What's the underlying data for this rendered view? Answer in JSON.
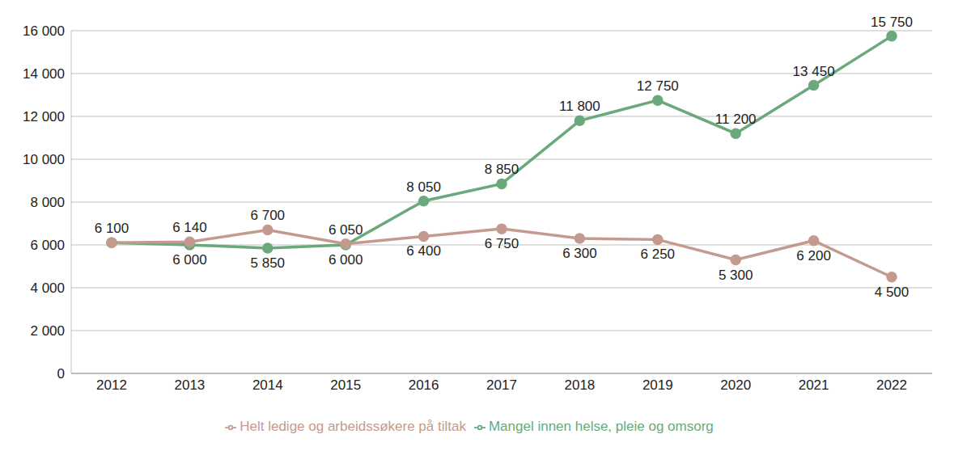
{
  "chart_data": {
    "type": "line",
    "categories": [
      "2012",
      "2013",
      "2014",
      "2015",
      "2016",
      "2017",
      "2018",
      "2019",
      "2020",
      "2021",
      "2022"
    ],
    "series": [
      {
        "name": "Mangel innen helse, pleie og omsorg",
        "color": "#6aa97c",
        "marker": "circle",
        "values": [
          6100,
          6000,
          5850,
          6000,
          8050,
          8850,
          11800,
          12750,
          11200,
          13450,
          15750
        ],
        "value_labels": [
          "6 100",
          "6 000",
          "5 850",
          "6 000",
          "8 050",
          "8 850",
          "11 800",
          "12 750",
          "11 200",
          "13 450",
          "15 750"
        ]
      },
      {
        "name": "Helt ledige og arbeidssøkere på tiltak",
        "color": "#c49a8e",
        "marker": "circle",
        "values": [
          6100,
          6140,
          6700,
          6050,
          6400,
          6750,
          6300,
          6250,
          5300,
          6200,
          4500
        ],
        "value_labels": [
          null,
          "6 140",
          "6 700",
          "6 050",
          "6 400",
          "6 750",
          "6 300",
          "6 250",
          "5 300",
          "6 200",
          "4 500"
        ]
      }
    ],
    "ylim": [
      0,
      16000
    ],
    "yticks": [
      0,
      {
        "value": 2000,
        "label": "2 000"
      },
      {
        "value": 4000,
        "label": "4 000"
      },
      {
        "value": 6000,
        "label": "6 000"
      },
      {
        "value": 8000,
        "label": "8 000"
      },
      {
        "value": 10000,
        "label": "10 000"
      },
      {
        "value": 12000,
        "label": "12 000"
      },
      {
        "value": 14000,
        "label": "14 000"
      },
      {
        "value": 16000,
        "label": "16 000"
      }
    ],
    "grid": true,
    "legend": "bottom",
    "data_labels": true
  }
}
